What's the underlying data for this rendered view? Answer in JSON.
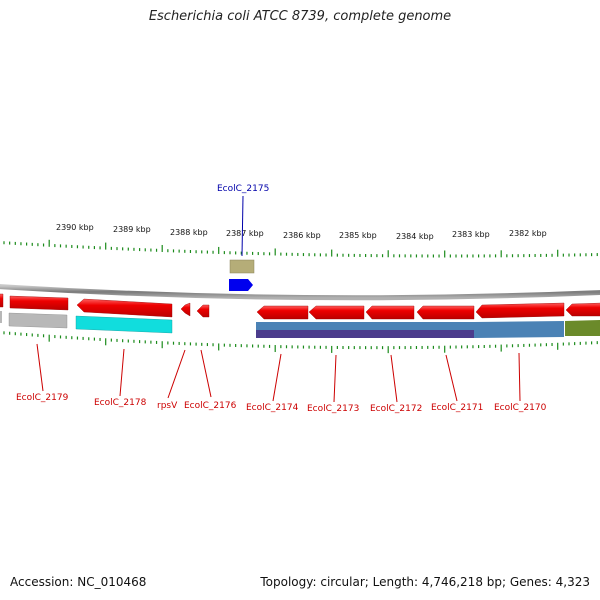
{
  "title": "Escherichia coli ATCC 8739, complete genome",
  "footer": {
    "accession": "Accession: NC_010468",
    "summary": "Topology: circular; Length: 4,746,218 bp; Genes: 4,323"
  },
  "colors": {
    "backbone": "#8c8c8c",
    "tick": "#1a8a1a",
    "gene_red": "#ee0000",
    "highlight_label": "#0000aa",
    "gene_label": "#cc0000",
    "highlight_gene": "#0000ee",
    "olive": "#b5ad78",
    "gray": "#b8b8b8",
    "cyan": "#11dddd",
    "steel": "#4b82b5",
    "purple": "#4b3c8c",
    "green": "#6b8a2a"
  },
  "scale_labels": [
    "2390 kbp",
    "2389 kbp",
    "2388 kbp",
    "2387 kbp",
    "2386 kbp",
    "2385 kbp",
    "2384 kbp",
    "2383 kbp",
    "2382 kbp"
  ],
  "highlight_label": "EcolC_2175",
  "gene_labels": [
    "EcolC_2179",
    "EcolC_2178",
    "rpsV",
    "EcolC_2176",
    "EcolC_2174",
    "EcolC_2173",
    "EcolC_2172",
    "EcolC_2171",
    "EcolC_2170"
  ]
}
